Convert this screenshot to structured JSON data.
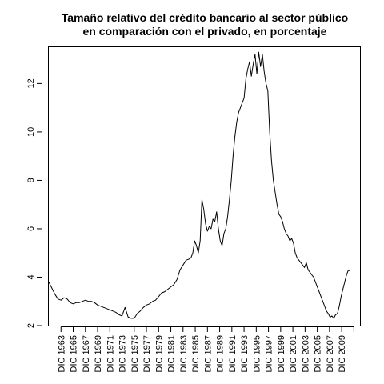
{
  "chart_data": {
    "type": "line",
    "title_line1": "Tamaño relativo del crédito bancario al sector público",
    "title_line2": "en comparación con el privado, en porcentaje",
    "xlabel": "",
    "ylabel": "",
    "xlim": [
      1961.0,
      2012.0
    ],
    "ylim": [
      2,
      13.5
    ],
    "y_ticks": [
      2,
      4,
      6,
      8,
      10,
      12
    ],
    "x_ticks": [
      {
        "value": 1963,
        "label": "DIC 1963"
      },
      {
        "value": 1965,
        "label": "DIC 1965"
      },
      {
        "value": 1967,
        "label": "DIC 1967"
      },
      {
        "value": 1969,
        "label": "DIC 1969"
      },
      {
        "value": 1971,
        "label": "DIC 1971"
      },
      {
        "value": 1973,
        "label": "DIC 1973"
      },
      {
        "value": 1975,
        "label": "DIC 1975"
      },
      {
        "value": 1977,
        "label": "DIC 1977"
      },
      {
        "value": 1979,
        "label": "DIC 1979"
      },
      {
        "value": 1981,
        "label": "DIC 1981"
      },
      {
        "value": 1983,
        "label": "DIC 1983"
      },
      {
        "value": 1985,
        "label": "DIC 1985"
      },
      {
        "value": 1987,
        "label": "DIC 1987"
      },
      {
        "value": 1989,
        "label": "DIC 1989"
      },
      {
        "value": 1991,
        "label": "DIC 1991"
      },
      {
        "value": 1993,
        "label": "DIC 1993"
      },
      {
        "value": 1995,
        "label": "DIC 1995"
      },
      {
        "value": 1997,
        "label": "DIC 1997"
      },
      {
        "value": 1999,
        "label": "DIC 1999"
      },
      {
        "value": 2001,
        "label": "DIC 2001"
      },
      {
        "value": 2003,
        "label": "DIC 2003"
      },
      {
        "value": 2005,
        "label": "DIC 2005"
      },
      {
        "value": 2007,
        "label": "DIC 2007"
      },
      {
        "value": 2009,
        "label": "DIC 2009"
      }
    ],
    "minor_x_ticks": [
      2011
    ],
    "grid": false,
    "series": [
      {
        "x": [
          1961.0,
          1961.5,
          1962.0,
          1962.5,
          1963.0,
          1963.5,
          1964.0,
          1964.5,
          1965.0,
          1965.5,
          1966.0,
          1966.5,
          1967.0,
          1967.5,
          1968.0,
          1968.5,
          1969.0,
          1969.5,
          1970.0,
          1970.5,
          1971.0,
          1971.5,
          1972.0,
          1972.5,
          1973.0,
          1973.5,
          1974.0,
          1974.5,
          1975.0,
          1975.5,
          1976.0,
          1976.5,
          1977.0,
          1977.5,
          1978.0,
          1978.5,
          1979.0,
          1979.5,
          1980.0,
          1980.5,
          1981.0,
          1981.5,
          1982.0,
          1982.5,
          1983.0,
          1983.5,
          1984.0,
          1984.3,
          1984.6,
          1984.9,
          1985.2,
          1985.5,
          1985.8,
          1986.1,
          1986.4,
          1986.7,
          1987.0,
          1987.3,
          1987.6,
          1987.9,
          1988.2,
          1988.5,
          1988.8,
          1989.1,
          1989.4,
          1989.7,
          1990.0,
          1990.3,
          1990.6,
          1990.9,
          1991.2,
          1991.5,
          1991.8,
          1992.1,
          1992.4,
          1992.7,
          1993.0,
          1993.3,
          1993.6,
          1993.9,
          1994.2,
          1994.5,
          1994.8,
          1995.1,
          1995.4,
          1995.7,
          1996.0,
          1996.3,
          1996.6,
          1996.9,
          1997.2,
          1997.5,
          1997.8,
          1998.1,
          1998.4,
          1998.7,
          1999.0,
          1999.3,
          1999.6,
          1999.9,
          2000.2,
          2000.5,
          2000.8,
          2001.1,
          2001.4,
          2001.7,
          2002.0,
          2002.3,
          2002.6,
          2002.9,
          2003.2,
          2003.5,
          2003.8,
          2004.1,
          2004.4,
          2004.7,
          2005.0,
          2005.3,
          2005.6,
          2005.9,
          2006.2,
          2006.5,
          2006.8,
          2007.1,
          2007.4,
          2007.7,
          2008.0,
          2008.3,
          2008.6,
          2008.9,
          2009.2,
          2009.5,
          2009.8,
          2010.1,
          2010.4
        ],
        "values": [
          3.8,
          3.55,
          3.3,
          3.1,
          3.05,
          3.15,
          3.1,
          2.95,
          2.9,
          2.95,
          2.95,
          3.0,
          3.05,
          3.0,
          3.0,
          2.95,
          2.85,
          2.8,
          2.75,
          2.7,
          2.65,
          2.6,
          2.55,
          2.45,
          2.4,
          2.75,
          2.35,
          2.3,
          2.3,
          2.5,
          2.6,
          2.75,
          2.85,
          2.9,
          3.0,
          3.05,
          3.2,
          3.35,
          3.4,
          3.5,
          3.6,
          3.7,
          3.9,
          4.3,
          4.5,
          4.7,
          4.75,
          4.8,
          5.0,
          5.5,
          5.3,
          5.0,
          5.5,
          7.2,
          6.8,
          6.2,
          5.9,
          6.1,
          6.0,
          6.4,
          6.3,
          6.7,
          6.0,
          5.5,
          5.3,
          5.8,
          6.0,
          6.5,
          7.2,
          8.0,
          9.0,
          9.8,
          10.4,
          10.8,
          11.0,
          11.2,
          11.4,
          12.2,
          12.6,
          12.9,
          12.3,
          12.8,
          13.2,
          12.4,
          13.3,
          12.7,
          13.2,
          12.5,
          12.0,
          11.7,
          10.0,
          8.8,
          8.0,
          7.5,
          7.0,
          6.6,
          6.5,
          6.3,
          6.0,
          5.8,
          5.7,
          5.5,
          5.6,
          5.4,
          5.0,
          4.8,
          4.7,
          4.6,
          4.5,
          4.4,
          4.6,
          4.3,
          4.2,
          4.1,
          4.0,
          3.8,
          3.6,
          3.4,
          3.2,
          3.0,
          2.8,
          2.6,
          2.5,
          2.35,
          2.4,
          2.3,
          2.45,
          2.5,
          2.8,
          3.2,
          3.5,
          3.8,
          4.1,
          4.3,
          4.25
        ]
      }
    ]
  }
}
